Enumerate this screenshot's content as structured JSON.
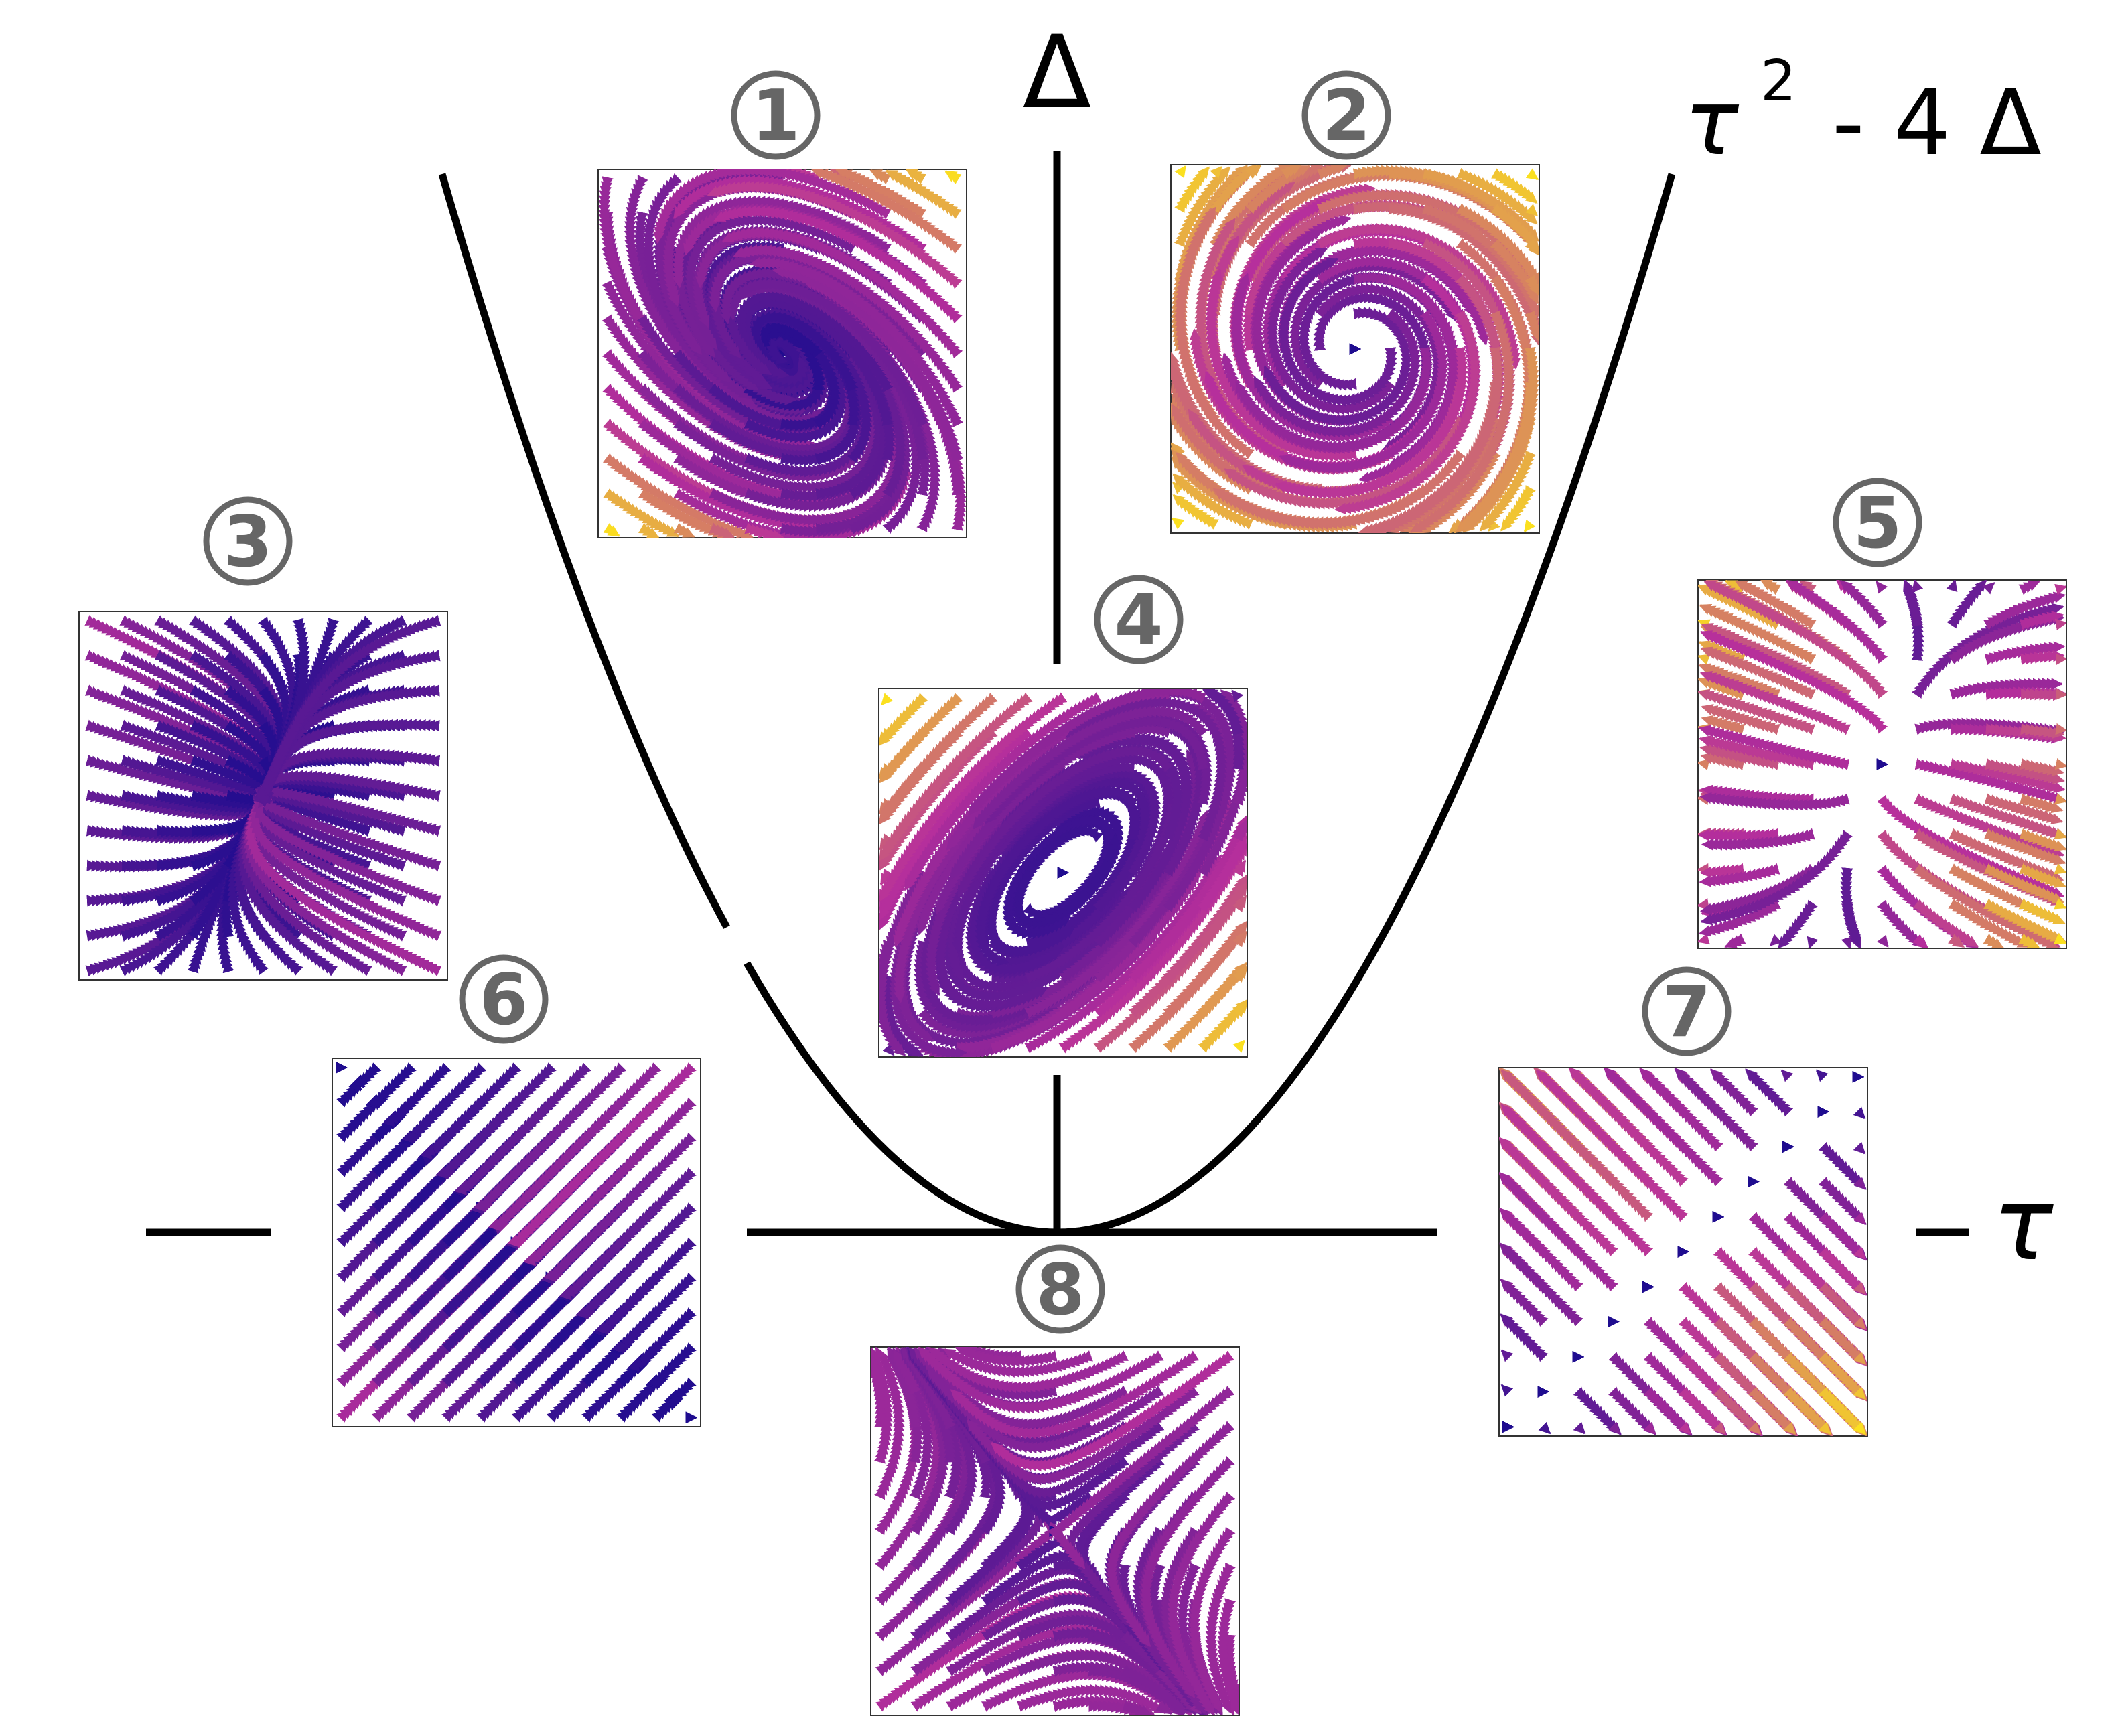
{
  "axes": {
    "vertical_label": "Δ",
    "horizontal_label": "τ",
    "parabola_label_tau": "τ",
    "parabola_label_exp": "2",
    "parabola_label_rest": "- 4 Δ"
  },
  "colors": {
    "axis": "#000000",
    "label_gray": "#666666",
    "stream_low": "#1f0c8f",
    "stream_mid": "#b72f9c",
    "stream_high": "#fbe01f"
  },
  "panels": [
    {
      "id": "1",
      "label": "1",
      "kind": "stable-spiral"
    },
    {
      "id": "2",
      "label": "2",
      "kind": "unstable-spiral"
    },
    {
      "id": "3",
      "label": "3",
      "kind": "stable-node"
    },
    {
      "id": "4",
      "label": "4",
      "kind": "center"
    },
    {
      "id": "5",
      "label": "5",
      "kind": "unstable-node"
    },
    {
      "id": "6",
      "label": "6",
      "kind": "line-attractor"
    },
    {
      "id": "7",
      "label": "7",
      "kind": "line-repeller"
    },
    {
      "id": "8",
      "label": "8",
      "kind": "saddle"
    }
  ]
}
